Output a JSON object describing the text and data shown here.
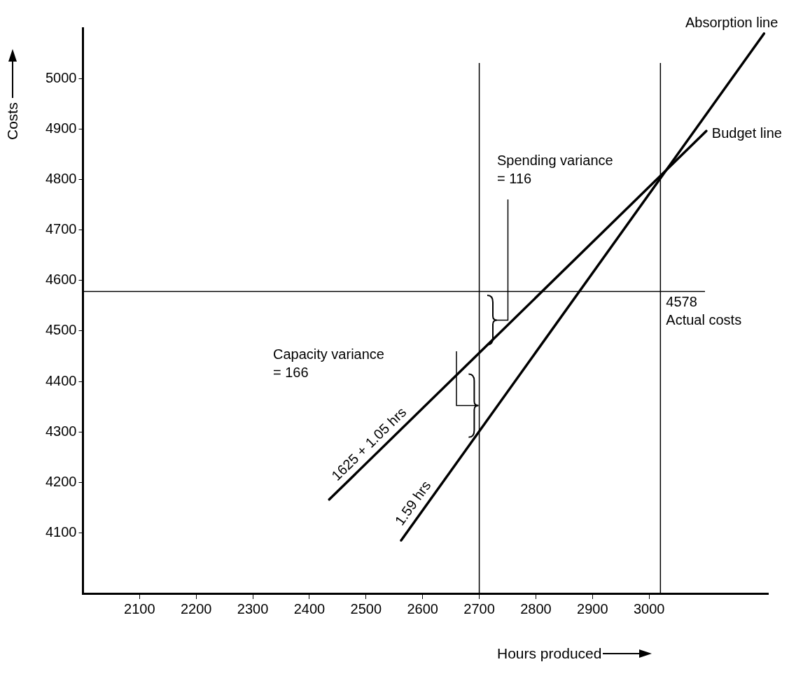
{
  "chart_data": {
    "type": "line",
    "xlabel": "Hours produced",
    "ylabel": "Costs",
    "xlim": [
      2000,
      3210
    ],
    "xticks": [
      2100,
      2200,
      2300,
      2400,
      2500,
      2600,
      2700,
      2800,
      2900,
      3000
    ],
    "ylim": [
      3980,
      5100
    ],
    "yticks": [
      4100,
      4200,
      4300,
      4400,
      4500,
      4600,
      4700,
      4800,
      4900,
      5000
    ],
    "grid": false,
    "legend": false,
    "marker": "none",
    "line_style": "solid",
    "series": [
      {
        "name": "Budget line",
        "color": "#000000",
        "x": [
          2435,
          3101
        ],
        "values": [
          4166,
          4896
        ]
      },
      {
        "name": "Absorption line",
        "color": "#000000",
        "x": [
          2562,
          3203
        ],
        "values": [
          4085,
          5089
        ]
      }
    ],
    "ref_lines": [
      {
        "axis": "x",
        "value": 2700
      },
      {
        "axis": "x",
        "value": 3020
      },
      {
        "axis": "y",
        "value": 4578,
        "label": "4578\nActual costs"
      }
    ],
    "annotations": [
      "Spending variance\n= 116",
      "Capacity variance\n= 166",
      {
        "text": "1625 + 1.05 hrs",
        "x": 2520,
        "y": 4259
      },
      {
        "text": "1.59 hrs",
        "x": 2600,
        "y": 4145
      }
    ]
  }
}
